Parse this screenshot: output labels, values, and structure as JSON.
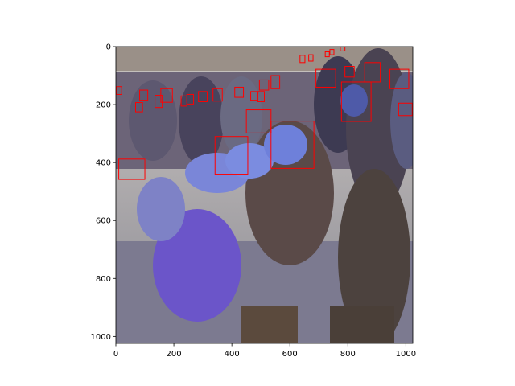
{
  "figure": {
    "type": "image-with-detections",
    "image_description_hidden": true,
    "x_axis": {
      "ticks": [
        "0",
        "200",
        "400",
        "600",
        "800",
        "1000"
      ],
      "tick_values": [
        0,
        200,
        400,
        600,
        800,
        1000
      ],
      "range": [
        0,
        1024
      ]
    },
    "y_axis": {
      "ticks": [
        "0",
        "200",
        "400",
        "600",
        "800",
        "1000"
      ],
      "tick_values": [
        0,
        200,
        400,
        600,
        800,
        1000
      ],
      "range": [
        0,
        1024
      ]
    },
    "box_color": "#ff0000",
    "boxes": [
      {
        "x0": 10,
        "y0": 388,
        "x1": 100,
        "y1": 458
      },
      {
        "x0": 342,
        "y0": 310,
        "x1": 455,
        "y1": 440
      },
      {
        "x0": 450,
        "y0": 218,
        "x1": 535,
        "y1": 298
      },
      {
        "x0": 535,
        "y0": 257,
        "x1": 683,
        "y1": 420
      },
      {
        "x0": 778,
        "y0": 122,
        "x1": 880,
        "y1": 258
      },
      {
        "x0": 858,
        "y0": 55,
        "x1": 912,
        "y1": 122
      },
      {
        "x0": 945,
        "y0": 78,
        "x1": 1010,
        "y1": 145
      },
      {
        "x0": 975,
        "y0": 195,
        "x1": 1022,
        "y1": 238
      },
      {
        "x0": 690,
        "y0": 78,
        "x1": 758,
        "y1": 140
      },
      {
        "x0": 790,
        "y0": 68,
        "x1": 822,
        "y1": 105
      },
      {
        "x0": 535,
        "y0": 100,
        "x1": 565,
        "y1": 145
      },
      {
        "x0": 495,
        "y0": 115,
        "x1": 527,
        "y1": 150
      },
      {
        "x0": 487,
        "y0": 155,
        "x1": 512,
        "y1": 190
      },
      {
        "x0": 465,
        "y0": 155,
        "x1": 490,
        "y1": 185
      },
      {
        "x0": 410,
        "y0": 140,
        "x1": 440,
        "y1": 175
      },
      {
        "x0": 335,
        "y0": 145,
        "x1": 367,
        "y1": 188
      },
      {
        "x0": 285,
        "y0": 155,
        "x1": 315,
        "y1": 190
      },
      {
        "x0": 245,
        "y0": 165,
        "x1": 268,
        "y1": 198
      },
      {
        "x0": 225,
        "y0": 170,
        "x1": 245,
        "y1": 205
      },
      {
        "x0": 155,
        "y0": 145,
        "x1": 195,
        "y1": 192
      },
      {
        "x0": 135,
        "y0": 168,
        "x1": 160,
        "y1": 210
      },
      {
        "x0": 82,
        "y0": 150,
        "x1": 110,
        "y1": 185
      },
      {
        "x0": 68,
        "y0": 193,
        "x1": 92,
        "y1": 225
      },
      {
        "x0": 2,
        "y0": 138,
        "x1": 20,
        "y1": 165
      },
      {
        "x0": 635,
        "y0": 30,
        "x1": 652,
        "y1": 55
      },
      {
        "x0": 665,
        "y0": 28,
        "x1": 680,
        "y1": 50
      },
      {
        "x0": 722,
        "y0": 18,
        "x1": 736,
        "y1": 35
      },
      {
        "x0": 738,
        "y0": 10,
        "x1": 752,
        "y1": 28
      },
      {
        "x0": 774,
        "y0": 0,
        "x1": 790,
        "y1": 15
      }
    ]
  }
}
